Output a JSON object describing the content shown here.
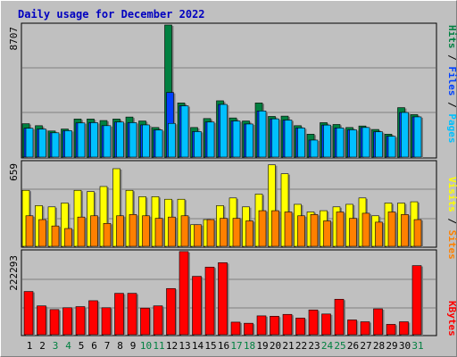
{
  "title": "Daily usage for December 2022",
  "colors": {
    "pages": "#00c0ff",
    "files": "#0040ff",
    "hits": "#008040",
    "visits": "#ffff00",
    "sites": "#ff8000",
    "kbytes": "#ff0000",
    "weekday": "#000000",
    "weekend": "#008040"
  },
  "chart_data": [
    {
      "type": "bar",
      "ylabel_max": "8707",
      "ylim": [
        0,
        8707
      ],
      "legend": {
        "pages": "Pages",
        "sep1": " / ",
        "files": "Files",
        "sep2": " / ",
        "hits": "Hits"
      },
      "categories": [
        "1",
        "2",
        "3",
        "4",
        "5",
        "6",
        "7",
        "8",
        "9",
        "10",
        "11",
        "12",
        "13",
        "14",
        "15",
        "16",
        "17",
        "18",
        "19",
        "20",
        "21",
        "22",
        "23",
        "24",
        "25",
        "26",
        "27",
        "28",
        "29",
        "30",
        "31"
      ],
      "weekend_days": [
        3,
        4,
        10,
        11,
        17,
        18,
        24,
        25,
        31
      ],
      "series": [
        {
          "name": "Hits",
          "values": [
            2200,
            2070,
            1720,
            1850,
            2510,
            2510,
            2410,
            2510,
            2640,
            2380,
            1950,
            8707,
            3570,
            1950,
            2540,
            3710,
            2580,
            2380,
            3570,
            2680,
            2700,
            2070,
            1510,
            2270,
            2150,
            1950,
            2050,
            1820,
            1510,
            3260,
            2800
          ]
        },
        {
          "name": "Files",
          "values": [
            1900,
            1850,
            1600,
            1740,
            2250,
            2270,
            2070,
            2310,
            2270,
            2120,
            1790,
            4260,
            3380,
            1680,
            2310,
            3470,
            2380,
            2180,
            3040,
            2520,
            2440,
            1920,
            1120,
            2110,
            1920,
            1800,
            1950,
            1670,
            1370,
            2940,
            2650
          ]
        },
        {
          "name": "Pages",
          "values": [
            1900,
            1850,
            1600,
            1740,
            2250,
            2270,
            2070,
            2310,
            2270,
            2120,
            1790,
            2220,
            3380,
            1680,
            2310,
            3470,
            2380,
            2180,
            3040,
            2520,
            2440,
            1920,
            1120,
            2110,
            1920,
            1800,
            1950,
            1670,
            1370,
            2940,
            2650
          ]
        }
      ]
    },
    {
      "type": "bar",
      "ylabel_max": "659",
      "ylim": [
        0,
        659
      ],
      "legend": {
        "sites": "Sites",
        "sep": " / ",
        "visits": "Visits"
      },
      "categories": [
        "1",
        "2",
        "3",
        "4",
        "5",
        "6",
        "7",
        "8",
        "9",
        "10",
        "11",
        "12",
        "13",
        "14",
        "15",
        "16",
        "17",
        "18",
        "19",
        "20",
        "21",
        "22",
        "23",
        "24",
        "25",
        "26",
        "27",
        "28",
        "29",
        "30",
        "31"
      ],
      "series": [
        {
          "name": "Visits",
          "values": [
            440,
            320,
            310,
            340,
            440,
            430,
            470,
            610,
            440,
            390,
            390,
            370,
            370,
            170,
            210,
            320,
            380,
            310,
            410,
            640,
            570,
            330,
            270,
            280,
            310,
            330,
            380,
            240,
            340,
            340,
            350
          ]
        },
        {
          "name": "Sites",
          "values": [
            240,
            210,
            160,
            140,
            230,
            240,
            180,
            240,
            250,
            240,
            220,
            230,
            240,
            170,
            210,
            220,
            220,
            200,
            280,
            280,
            270,
            240,
            250,
            200,
            270,
            220,
            260,
            190,
            270,
            250,
            210
          ]
        }
      ]
    },
    {
      "type": "bar",
      "ylabel_max": "222293",
      "ylim": [
        0,
        222293
      ],
      "legend": {
        "kbytes": "KBytes"
      },
      "categories": [
        "1",
        "2",
        "3",
        "4",
        "5",
        "6",
        "7",
        "8",
        "9",
        "10",
        "11",
        "12",
        "13",
        "14",
        "15",
        "16",
        "17",
        "18",
        "19",
        "20",
        "21",
        "22",
        "23",
        "24",
        "25",
        "26",
        "27",
        "28",
        "29",
        "30",
        "31"
      ],
      "series": [
        {
          "name": "KBytes",
          "values": [
            117000,
            78000,
            68000,
            73000,
            76000,
            92000,
            73000,
            112000,
            112000,
            72000,
            78000,
            125000,
            225000,
            158000,
            183000,
            195000,
            34000,
            31000,
            51000,
            50000,
            55000,
            45000,
            67000,
            56000,
            96000,
            40000,
            35000,
            70000,
            28000,
            35000,
            187000
          ]
        }
      ]
    }
  ]
}
